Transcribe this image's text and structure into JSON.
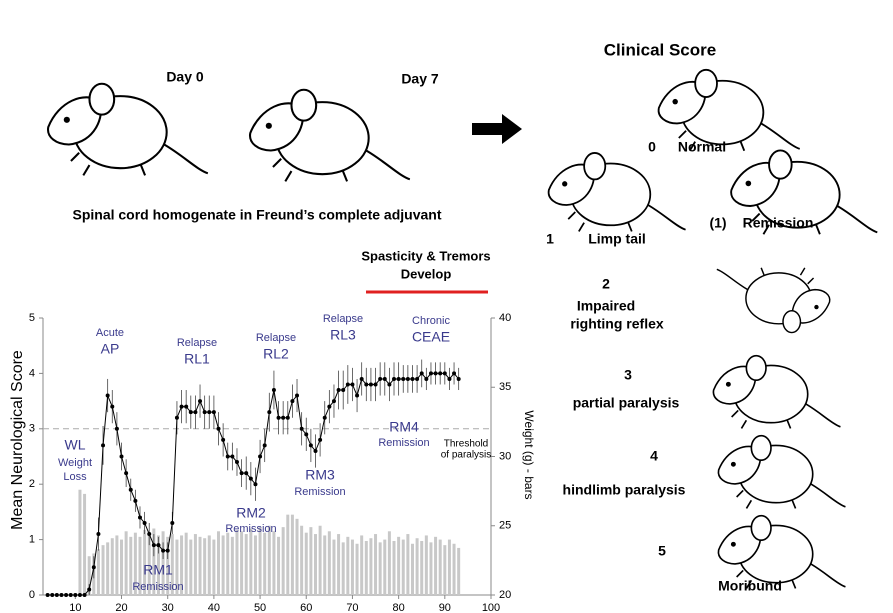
{
  "header": {
    "day0": "Day 0",
    "day7": "Day 7",
    "caption": "Spinal cord homogenate in Freund’s complete adjuvant"
  },
  "clinical_score": {
    "title": "Clinical Score",
    "items": [
      {
        "score": "0",
        "label": [
          "Normal"
        ]
      },
      {
        "score": "(1)",
        "label": [
          "Remission"
        ]
      },
      {
        "score": "1",
        "label": [
          "Limp tail"
        ]
      },
      {
        "score": "2",
        "label": [
          "Impaired",
          "righting reflex"
        ]
      },
      {
        "score": "3",
        "label": [
          "partial paralysis"
        ]
      },
      {
        "score": "4",
        "label": [
          "hindlimb paralysis"
        ]
      },
      {
        "score": "5",
        "label": [
          "Moribund"
        ]
      }
    ]
  },
  "chart_data": {
    "type": "line",
    "ylabel": "Mean Neurological Score",
    "y2label": "Weight (g) - bars",
    "xlim": [
      3,
      100
    ],
    "xticks": [
      10,
      20,
      30,
      40,
      50,
      60,
      70,
      80,
      90,
      100
    ],
    "ylim": [
      0,
      5
    ],
    "yticks": [
      0,
      1,
      2,
      3,
      4,
      5
    ],
    "y2lim": [
      20,
      40
    ],
    "y2ticks": [
      20,
      25,
      30,
      35,
      40
    ],
    "threshold": 3,
    "series": [
      {
        "type": "line",
        "color": "#000000",
        "x": [
          4,
          5,
          6,
          7,
          8,
          9,
          10,
          11,
          12,
          13,
          14,
          15,
          16,
          17,
          18,
          19,
          20,
          21,
          22,
          23,
          24,
          25,
          26,
          27,
          28,
          29,
          30,
          31,
          32,
          33,
          34,
          35,
          36,
          37,
          38,
          39,
          40,
          41,
          42,
          43,
          44,
          45,
          46,
          47,
          48,
          49,
          50,
          51,
          52,
          53,
          54,
          55,
          56,
          57,
          58,
          59,
          60,
          61,
          62,
          63,
          64,
          65,
          66,
          67,
          68,
          69,
          70,
          71,
          72,
          73,
          74,
          75,
          76,
          77,
          78,
          79,
          80,
          81,
          82,
          83,
          84,
          85,
          86,
          87,
          88,
          89,
          90,
          91,
          92,
          93
        ],
        "values": [
          0,
          0,
          0,
          0,
          0,
          0,
          0,
          0,
          0,
          0.1,
          0.5,
          1.1,
          2.7,
          3.6,
          3.4,
          3.0,
          2.5,
          2.2,
          1.9,
          1.7,
          1.4,
          1.3,
          1.1,
          0.9,
          0.9,
          0.8,
          0.8,
          1.3,
          3.2,
          3.4,
          3.4,
          3.3,
          3.3,
          3.5,
          3.3,
          3.3,
          3.3,
          3.0,
          2.8,
          2.5,
          2.5,
          2.4,
          2.2,
          2.2,
          2.1,
          2.0,
          2.5,
          2.7,
          3.3,
          3.7,
          3.2,
          3.2,
          3.2,
          3.5,
          3.6,
          3.0,
          2.9,
          2.7,
          2.6,
          2.8,
          3.2,
          3.4,
          3.5,
          3.7,
          3.7,
          3.8,
          3.8,
          3.6,
          3.9,
          3.8,
          3.8,
          3.8,
          3.9,
          3.9,
          3.8,
          3.9,
          3.9,
          3.9,
          3.9,
          3.9,
          3.9,
          4.0,
          3.9,
          4.0,
          4.0,
          4.0,
          4.0,
          3.9,
          4.0,
          3.9
        ],
        "errors": [
          0,
          0,
          0,
          0,
          0,
          0,
          0,
          0,
          0,
          0.1,
          0.2,
          0.3,
          0.35,
          0.3,
          0.3,
          0.3,
          0.25,
          0.25,
          0.2,
          0.2,
          0.2,
          0.2,
          0.2,
          0.2,
          0.15,
          0.15,
          0.15,
          0.2,
          0.3,
          0.3,
          0.3,
          0.3,
          0.3,
          0.3,
          0.3,
          0.3,
          0.3,
          0.3,
          0.3,
          0.25,
          0.25,
          0.25,
          0.25,
          0.3,
          0.3,
          0.3,
          0.3,
          0.3,
          0.35,
          0.35,
          0.3,
          0.3,
          0.3,
          0.3,
          0.3,
          0.3,
          0.3,
          0.3,
          0.3,
          0.3,
          0.3,
          0.3,
          0.3,
          0.35,
          0.35,
          0.35,
          0.3,
          0.3,
          0.3,
          0.3,
          0.3,
          0.3,
          0.3,
          0.3,
          0.3,
          0.3,
          0.3,
          0.25,
          0.25,
          0.25,
          0.25,
          0.25,
          0.2,
          0.2,
          0.2,
          0.2,
          0.2,
          0.2,
          0.2,
          0.2
        ]
      },
      {
        "type": "bar",
        "axis": "y2",
        "color": "#c8c8c8",
        "x": [
          11,
          12,
          13,
          14,
          15,
          16,
          17,
          18,
          19,
          20,
          21,
          22,
          23,
          24,
          25,
          26,
          27,
          28,
          29,
          30,
          31,
          32,
          33,
          34,
          35,
          36,
          37,
          38,
          39,
          40,
          41,
          42,
          43,
          44,
          45,
          46,
          47,
          48,
          49,
          50,
          51,
          52,
          53,
          54,
          55,
          56,
          57,
          58,
          59,
          60,
          61,
          62,
          63,
          64,
          65,
          66,
          67,
          68,
          69,
          70,
          71,
          72,
          73,
          74,
          75,
          76,
          77,
          78,
          79,
          80,
          81,
          82,
          83,
          84,
          85,
          86,
          87,
          88,
          89,
          90,
          91,
          92,
          93
        ],
        "values": [
          27.6,
          27.3,
          22.8,
          23.0,
          23.3,
          23.6,
          23.8,
          24.1,
          24.3,
          24.0,
          24.6,
          24.2,
          24.5,
          24.2,
          24.7,
          24.5,
          24.8,
          24.3,
          24.6,
          24.2,
          24.4,
          24.0,
          24.3,
          24.5,
          24.0,
          24.4,
          24.2,
          24.1,
          24.3,
          24.0,
          24.6,
          24.3,
          24.5,
          24.2,
          24.7,
          24.6,
          24.4,
          24.8,
          24.3,
          24.9,
          24.5,
          25.0,
          24.6,
          24.2,
          24.9,
          25.8,
          25.8,
          25.5,
          25.0,
          24.5,
          24.9,
          24.4,
          25.0,
          24.3,
          24.6,
          24.0,
          24.4,
          23.8,
          24.2,
          24.0,
          23.7,
          24.3,
          23.9,
          24.1,
          24.4,
          23.8,
          24.0,
          24.6,
          23.9,
          24.2,
          24.0,
          24.4,
          23.7,
          24.1,
          23.9,
          24.3,
          23.8,
          24.2,
          24.0,
          23.6,
          24.0,
          23.7,
          23.4
        ]
      }
    ],
    "annotations": [
      {
        "lines": [
          "Acute",
          "AP"
        ]
      },
      {
        "lines": [
          "Relapse",
          "RL1"
        ]
      },
      {
        "lines": [
          "Relapse",
          "RL2"
        ]
      },
      {
        "lines": [
          "Relapse",
          "RL3"
        ]
      },
      {
        "lines": [
          "Chronic",
          "CEAE"
        ]
      },
      {
        "lines": [
          "WL",
          "Weight",
          "Loss"
        ]
      },
      {
        "lines": [
          "RM1",
          "Remission"
        ]
      },
      {
        "lines": [
          "RM2",
          "Remission"
        ]
      },
      {
        "lines": [
          "RM3",
          "Remission"
        ]
      },
      {
        "lines": [
          "RM4",
          "Remission"
        ]
      },
      {
        "lines": [
          "Threshold",
          "of paralysis"
        ]
      },
      {
        "lines": [
          "Spasticity & Tremors",
          "Develop"
        ]
      }
    ]
  }
}
